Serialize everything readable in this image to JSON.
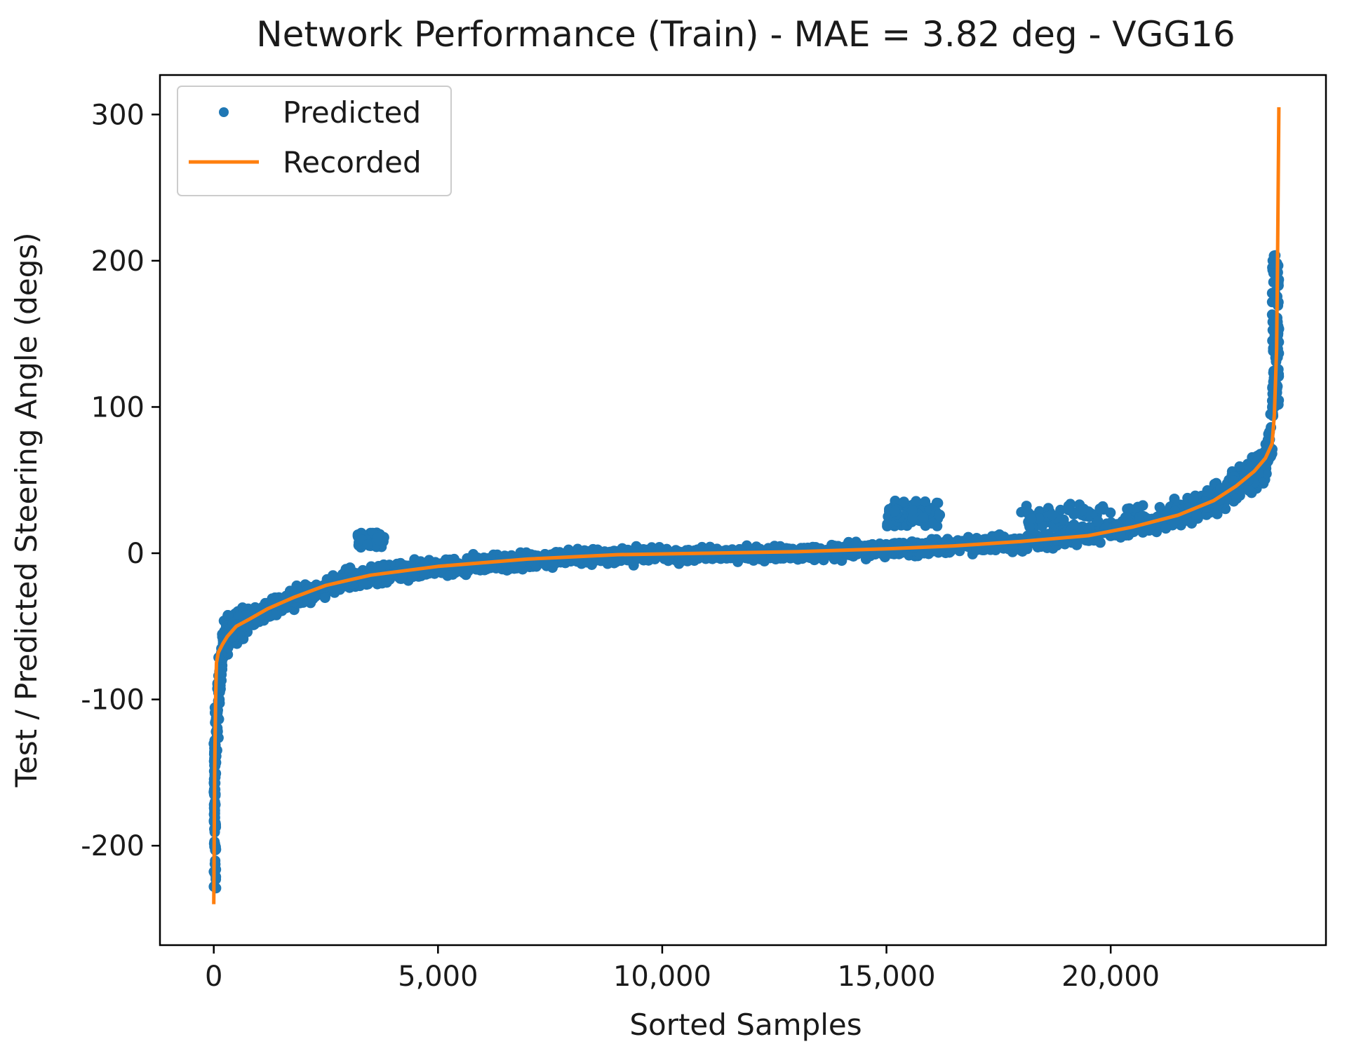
{
  "chart_data": {
    "type": "scatter",
    "title": "Network Performance (Train) - MAE = 3.82 deg - VGG16",
    "xlabel": "Sorted Samples",
    "ylabel": "Test / Predicted Steering Angle (degs)",
    "xlim": [
      -1200,
      24800
    ],
    "ylim": [
      -268,
      327
    ],
    "xticks": [
      0,
      5000,
      10000,
      15000,
      20000
    ],
    "xtick_labels": [
      "0",
      "5,000",
      "10,000",
      "15,000",
      "20,000"
    ],
    "yticks": [
      -200,
      -100,
      0,
      100,
      200,
      300
    ],
    "ytick_labels": [
      "-200",
      "-100",
      "0",
      "100",
      "200",
      "300"
    ],
    "grid": false,
    "legend": {
      "position": "top-left",
      "entries": [
        "Predicted",
        "Recorded"
      ]
    },
    "colors": {
      "predicted": "#1f77b4",
      "recorded": "#ff7f0e"
    },
    "series": [
      {
        "name": "Recorded",
        "kind": "line",
        "x": [
          0,
          20,
          40,
          60,
          100,
          200,
          300,
          500,
          800,
          1200,
          1800,
          2500,
          3500,
          5000,
          7000,
          9000,
          11000,
          13000,
          15000,
          16500,
          18000,
          19500,
          20500,
          21500,
          22300,
          22800,
          23200,
          23450,
          23600,
          23650,
          23700,
          23720,
          23750
        ],
        "y": [
          -240,
          -150,
          -100,
          -75,
          -68,
          -62,
          -57,
          -50,
          -45,
          -38,
          -30,
          -22,
          -15,
          -9,
          -4,
          -1,
          0,
          1,
          3,
          5,
          8,
          12,
          18,
          26,
          36,
          46,
          56,
          65,
          75,
          95,
          140,
          200,
          305
        ]
      },
      {
        "name": "Predicted",
        "kind": "scatter",
        "description_points": "dense band around Recorded curve; approx. 23,700 samples",
        "band_x": [
          0,
          200,
          500,
          1000,
          2000,
          3000,
          4000,
          6000,
          8000,
          10000,
          12000,
          14000,
          15000,
          16000,
          17000,
          18000,
          19000,
          20000,
          21000,
          22000,
          22500,
          23000,
          23400,
          23600,
          23700
        ],
        "band_center": [
          -150,
          -60,
          -50,
          -42,
          -28,
          -18,
          -13,
          -7,
          -3,
          -1,
          0,
          1,
          3,
          4,
          6,
          8,
          11,
          16,
          23,
          32,
          40,
          50,
          58,
          85,
          150
        ],
        "band_spread": [
          80,
          22,
          18,
          14,
          12,
          12,
          10,
          10,
          9,
          8,
          8,
          8,
          9,
          9,
          9,
          10,
          11,
          12,
          14,
          16,
          18,
          20,
          22,
          40,
          60
        ],
        "outlier_clusters": [
          {
            "x_range": [
              3200,
              3800
            ],
            "y_range": [
              4,
              14
            ]
          },
          {
            "x_range": [
              15000,
              16200
            ],
            "y_range": [
              18,
              36
            ]
          },
          {
            "x_range": [
              18000,
              20800
            ],
            "y_range": [
              18,
              34
            ]
          },
          {
            "x_range": [
              0,
              50
            ],
            "y_range": [
              -230,
              -130
            ]
          },
          {
            "x_range": [
              23600,
              23750
            ],
            "y_range": [
              100,
              205
            ]
          }
        ]
      }
    ]
  }
}
